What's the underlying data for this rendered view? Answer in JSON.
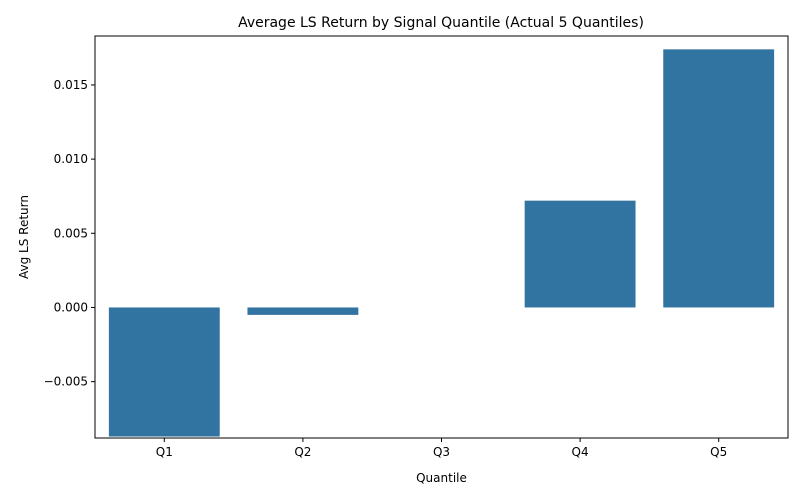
{
  "chart_data": {
    "type": "bar",
    "title": "Average LS Return by Signal Quantile (Actual 5 Quantiles)",
    "xlabel": "Quantile",
    "ylabel": "Avg LS Return",
    "categories": [
      "Q1",
      "Q2",
      "Q3",
      "Q4",
      "Q5"
    ],
    "values": [
      -0.0087,
      -0.0005,
      0.0,
      0.0072,
      0.0174
    ],
    "ylim": [
      -0.0088,
      0.0183
    ],
    "yticks": [
      -0.005,
      0.0,
      0.005,
      0.01,
      0.015
    ],
    "ytick_labels": [
      "−0.005",
      "0.000",
      "0.005",
      "0.010",
      "0.015"
    ],
    "grid": false,
    "legend": "none",
    "bar_color": "#3274a1"
  }
}
